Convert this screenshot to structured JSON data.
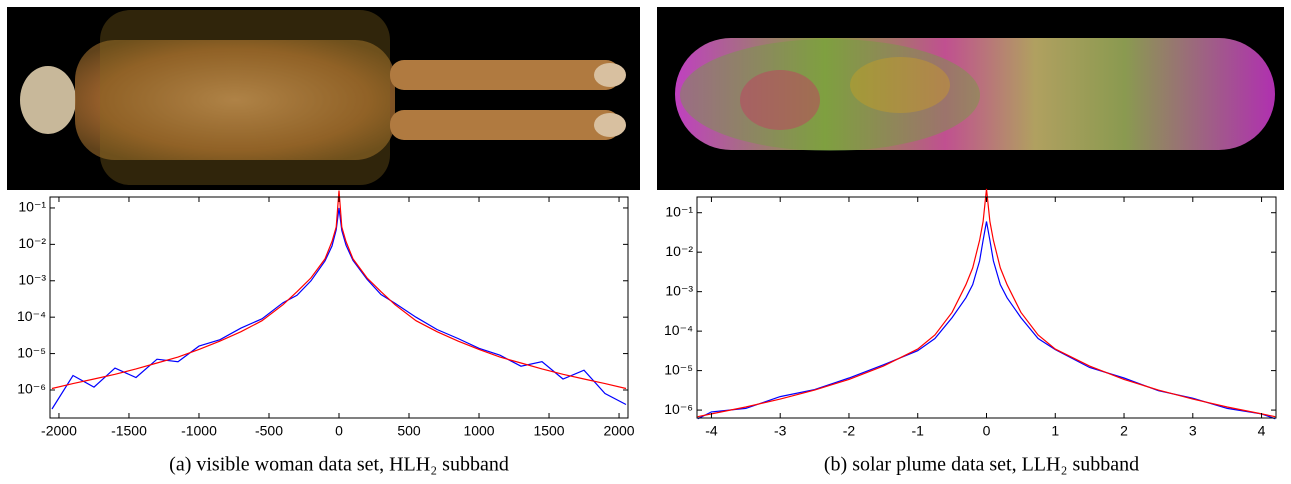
{
  "chart_data": [
    {
      "type": "line",
      "log_y": true,
      "caption": "(a) visible woman data set, HLH₂ subband",
      "x": [
        -2050,
        -1900,
        -1750,
        -1600,
        -1450,
        -1300,
        -1150,
        -1000,
        -850,
        -700,
        -550,
        -400,
        -300,
        -200,
        -100,
        -50,
        -20,
        0,
        20,
        50,
        100,
        200,
        300,
        400,
        550,
        700,
        850,
        1000,
        1150,
        1300,
        1450,
        1600,
        1750,
        1900,
        2050
      ],
      "series": [
        {
          "color": "#0000ff",
          "values": [
            3e-07,
            2.5e-06,
            1.2e-06,
            4e-06,
            2.2e-06,
            7e-06,
            6e-06,
            1.6e-05,
            2.4e-05,
            5e-05,
            9e-05,
            0.00025,
            0.0004,
            0.001,
            0.0035,
            0.009,
            0.025,
            0.1,
            0.024,
            0.0095,
            0.0036,
            0.0011,
            0.00042,
            0.00024,
            0.0001,
            4.6e-05,
            2.6e-05,
            1.4e-05,
            9e-06,
            4.5e-06,
            6e-06,
            2e-06,
            3.5e-06,
            8e-07,
            4e-07
          ]
        },
        {
          "color": "#ff0000",
          "values": [
            1.1e-06,
            1.5e-06,
            2e-06,
            2.7e-06,
            3.8e-06,
            5.5e-06,
            8e-06,
            1.3e-05,
            2.2e-05,
            4e-05,
            8e-05,
            0.00022,
            0.0005,
            0.0012,
            0.004,
            0.012,
            0.03,
            0.3,
            0.03,
            0.012,
            0.004,
            0.0012,
            0.0005,
            0.00022,
            8e-05,
            4e-05,
            2.2e-05,
            1.3e-05,
            8e-06,
            5.5e-06,
            3.8e-06,
            2.7e-06,
            2e-06,
            1.5e-06,
            1.1e-06
          ]
        }
      ],
      "xlim": [
        -2064,
        2064
      ],
      "ylim": [
        1.7e-07,
        0.2
      ],
      "xticks": [
        -2000,
        -1500,
        -1000,
        -500,
        0,
        500,
        1000,
        1500,
        2000
      ],
      "yticks": [
        {
          "value": 0.1,
          "label": "10⁻¹"
        },
        {
          "value": 0.01,
          "label": "10⁻²"
        },
        {
          "value": 0.001,
          "label": "10⁻³"
        },
        {
          "value": 0.0001,
          "label": "10⁻⁴"
        },
        {
          "value": 1e-05,
          "label": "10⁻⁵"
        },
        {
          "value": 1e-06,
          "label": "10⁻⁶"
        }
      ]
    },
    {
      "type": "line",
      "log_y": true,
      "caption": "(b) solar plume data set, LLH₂ subband",
      "x": [
        -4.2,
        -4,
        -3.5,
        -3,
        -2.5,
        -2,
        -1.5,
        -1,
        -0.75,
        -0.5,
        -0.3,
        -0.2,
        -0.1,
        -0.05,
        0,
        0.05,
        0.1,
        0.2,
        0.3,
        0.5,
        0.75,
        1,
        1.5,
        2,
        2.5,
        3,
        3.5,
        4,
        4.2
      ],
      "series": [
        {
          "color": "#0000ff",
          "values": [
            6e-07,
            9e-07,
            1.1e-06,
            2.2e-06,
            3.3e-06,
            6.5e-06,
            1.4e-05,
            3.2e-05,
            6.5e-05,
            0.00022,
            0.0007,
            0.0015,
            0.006,
            0.02,
            0.06,
            0.02,
            0.006,
            0.0015,
            0.0007,
            0.00022,
            6.5e-05,
            3.4e-05,
            1.2e-05,
            6.5e-06,
            3.1e-06,
            2e-06,
            1.1e-06,
            8e-07,
            6e-07
          ]
        },
        {
          "color": "#ff0000",
          "values": [
            6.8e-07,
            8e-07,
            1.2e-06,
            1.9e-06,
            3.2e-06,
            6e-06,
            1.3e-05,
            3.5e-05,
            8e-05,
            0.0003,
            0.0015,
            0.004,
            0.02,
            0.06,
            0.4,
            0.06,
            0.02,
            0.004,
            0.0015,
            0.0003,
            8e-05,
            3.5e-05,
            1.3e-05,
            6e-06,
            3.2e-06,
            1.9e-06,
            1.2e-06,
            8e-07,
            6.8e-07
          ]
        }
      ],
      "xlim": [
        -4.21,
        4.21
      ],
      "ylim": [
        6.3e-07,
        0.25
      ],
      "xticks": [
        -4,
        -3,
        -2,
        -1,
        0,
        1,
        2,
        3,
        4
      ],
      "yticks": [
        {
          "value": 0.1,
          "label": "10⁻¹"
        },
        {
          "value": 0.01,
          "label": "10⁻²"
        },
        {
          "value": 0.001,
          "label": "10⁻³"
        },
        {
          "value": 0.0001,
          "label": "10⁻⁴"
        },
        {
          "value": 1e-05,
          "label": "10⁻⁵"
        },
        {
          "value": 1e-06,
          "label": "10⁻⁶"
        }
      ]
    }
  ]
}
